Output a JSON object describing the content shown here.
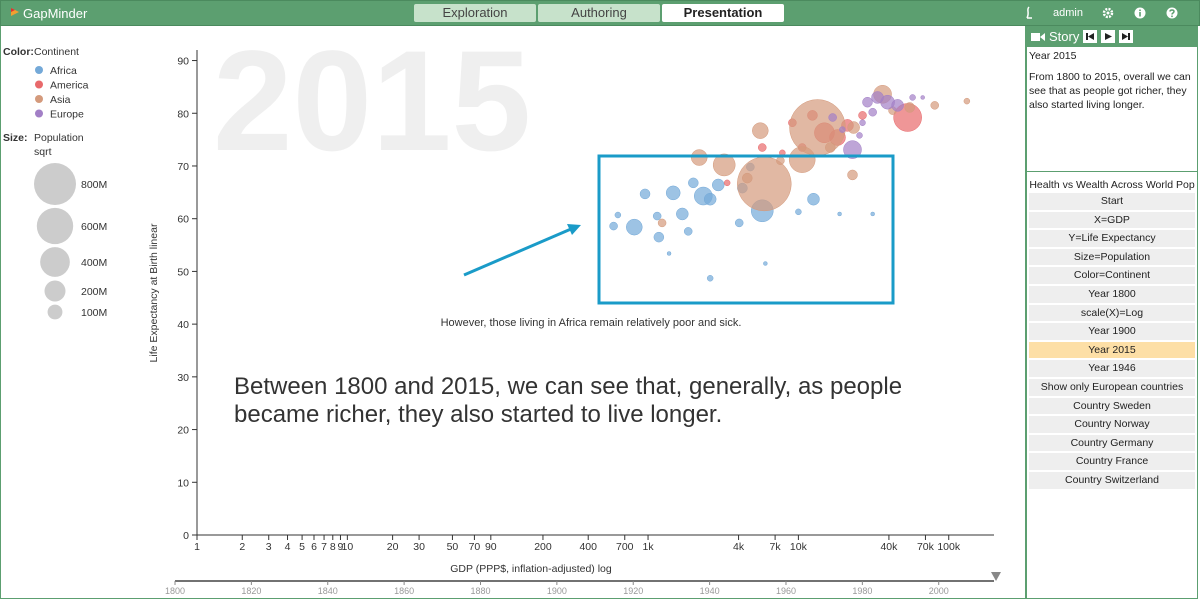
{
  "app": {
    "logo": "GapMinder",
    "tabs": [
      "Exploration",
      "Authoring",
      "Presentation"
    ],
    "active_tab": 2,
    "user": "admin"
  },
  "story": {
    "title": "Story",
    "step_title": "Year 2015",
    "text": "From 1800 to 2015, overall we can see that as people got richer, they also started living longer.",
    "list_title": "Health vs Wealth Across World Pop",
    "steps": [
      "Start",
      "X=GDP",
      "Y=Life Expectancy",
      "Size=Population",
      "Color=Continent",
      "Year 1800",
      "scale(X)=Log",
      "Year 1900",
      "Year 2015",
      "Year 1946",
      "Show only European countries",
      "Country Sweden",
      "Country Norway",
      "Country Germany",
      "Country France",
      "Country Switzerland"
    ],
    "active_step": 8
  },
  "chart_data": {
    "type": "scatter",
    "year": 2015,
    "color_label": "Color:",
    "color_by": "Continent",
    "size_label": "Size:",
    "size_by": "Population",
    "size_scale": "sqrt",
    "size_legend": [
      {
        "value": 800000000,
        "label": "800M"
      },
      {
        "value": 600000000,
        "label": "600M"
      },
      {
        "value": 400000000,
        "label": "400M"
      },
      {
        "value": 200000000,
        "label": "200M"
      },
      {
        "value": 100000000,
        "label": "100M"
      }
    ],
    "x_label": "GDP (PPP$, inflation-adjusted) log",
    "y_label": "Life Expectancy at Birth linear",
    "x_log": true,
    "xlim": [
      1,
      200000
    ],
    "ylim": [
      0,
      92
    ],
    "xticks": [
      1,
      2,
      3,
      4,
      5,
      6,
      7,
      8,
      9,
      10,
      20,
      30,
      50,
      70,
      90,
      200,
      400,
      700,
      {
        "value": 1000,
        "label": "1k"
      },
      {
        "value": 4000,
        "label": "4k"
      },
      {
        "value": 7000,
        "label": "7k"
      },
      {
        "value": 10000,
        "label": "10k"
      },
      {
        "value": 40000,
        "label": "40k"
      },
      {
        "value": 70000,
        "label": "70k"
      },
      {
        "value": 100000,
        "label": "100k"
      }
    ],
    "yticks": [
      0,
      10,
      20,
      30,
      40,
      50,
      60,
      70,
      80,
      90
    ],
    "timeline_lim": [
      1800,
      2015
    ],
    "timeline_ticks": [
      1800,
      1820,
      1840,
      1860,
      1880,
      1900,
      1920,
      1940,
      1960,
      1980,
      2000
    ],
    "annotation": "However, those living in Africa remain relatively poor and sick.",
    "caption_lines": [
      "Between 1800 and 2015, we can see that, generally, as people",
      "became richer, they also started to live longer."
    ],
    "series": [
      {
        "name": "Africa",
        "color": "#74a9d8",
        "x": [
          5750,
          810,
          2330,
          12600,
          1180,
          1690,
          2590,
          955,
          1470,
          1850,
          2000,
          2930,
          4040,
          2590,
          6030,
          1380,
          590,
          630,
          4790,
          18800,
          31200,
          10000,
          4240,
          1150
        ],
        "values": [
          61.5,
          58.4,
          64.3,
          63.7,
          56.5,
          60.9,
          63.7,
          64.7,
          64.9,
          57.6,
          66.8,
          66.4,
          59.2,
          48.7,
          51.5,
          53.4,
          58.6,
          60.7,
          69.8,
          60.9,
          60.9,
          61.3,
          65.8,
          60.5
        ],
        "sizes": [
          220000000,
          116000000,
          147000000,
          65000000,
          45000000,
          65000000,
          65000000,
          45000000,
          89000000,
          29000000,
          45000000,
          65000000,
          29000000,
          16000000,
          7000000,
          7000000,
          29000000,
          16000000,
          29000000,
          7000000,
          7000000,
          16000000,
          45000000,
          29000000
        ]
      },
      {
        "name": "America",
        "color": "#e8696b",
        "x": [
          53300,
          18200,
          14900,
          9120,
          21200,
          5750,
          12400,
          26700,
          3360,
          7820,
          10600
        ],
        "values": [
          79.2,
          75.4,
          76.3,
          78.2,
          77.7,
          73.5,
          79.6,
          79.6,
          66.8,
          72.5,
          73.5
        ],
        "sizes": [
          356000000,
          116000000,
          181000000,
          29000000,
          65000000,
          29000000,
          45000000,
          29000000,
          16000000,
          16000000,
          29000000
        ]
      },
      {
        "name": "Asia",
        "color": "#d49a7c",
        "x": [
          13400,
          5930,
          36300,
          5580,
          3210,
          10600,
          23300,
          4570,
          16300,
          80700,
          132000,
          22900,
          2190,
          1240,
          42300,
          7590,
          55000
        ],
        "values": [
          77.3,
          66.6,
          83.6,
          76.7,
          70.2,
          71.2,
          77.3,
          67.7,
          73.5,
          81.5,
          82.3,
          68.3,
          71.6,
          59.2,
          80.5,
          71,
          81.1
        ],
        "sizes": [
          1420000000,
          1322000000,
          147000000,
          116000000,
          220000000,
          307000000,
          65000000,
          45000000,
          45000000,
          29000000,
          16000000,
          45000000,
          116000000,
          29000000,
          29000000,
          29000000,
          45000000
        ]
      },
      {
        "name": "Europe",
        "color": "#a27fc6",
        "x": [
          22900,
          39200,
          33600,
          45700,
          28800,
          16900,
          57500,
          26700,
          19600,
          31200,
          67100,
          25500
        ],
        "values": [
          73.1,
          82.1,
          83,
          81.5,
          82.1,
          79.2,
          83,
          78.2,
          76.9,
          80.2,
          83,
          75.8
        ],
        "sizes": [
          147000000,
          89000000,
          65000000,
          65000000,
          45000000,
          29000000,
          16000000,
          16000000,
          16000000,
          29000000,
          7000000,
          16000000
        ]
      }
    ]
  }
}
